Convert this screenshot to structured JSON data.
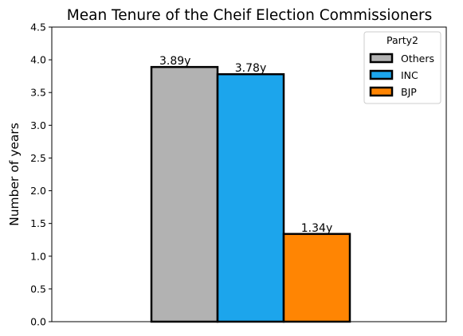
{
  "chart_data": {
    "type": "bar",
    "title": "Mean Tenure of the Cheif Election Commissioners",
    "ylabel": "Number of years",
    "xlabel": "",
    "ylim": [
      0,
      4.5
    ],
    "yticks": [
      "0.0",
      "0.5",
      "1.0",
      "1.5",
      "2.0",
      "2.5",
      "3.0",
      "3.5",
      "4.0",
      "4.5"
    ],
    "grid": false,
    "legend": {
      "title": "Party2",
      "placement": "top-right"
    },
    "series": [
      {
        "name": "Others",
        "value": 3.89,
        "label": "3.89y",
        "color": "#b2b2b2"
      },
      {
        "name": "INC",
        "value": 3.78,
        "label": "3.78y",
        "color": "#1ca5ec"
      },
      {
        "name": "BJP",
        "value": 1.34,
        "label": "1.34y",
        "color": "#ff8503"
      }
    ]
  }
}
